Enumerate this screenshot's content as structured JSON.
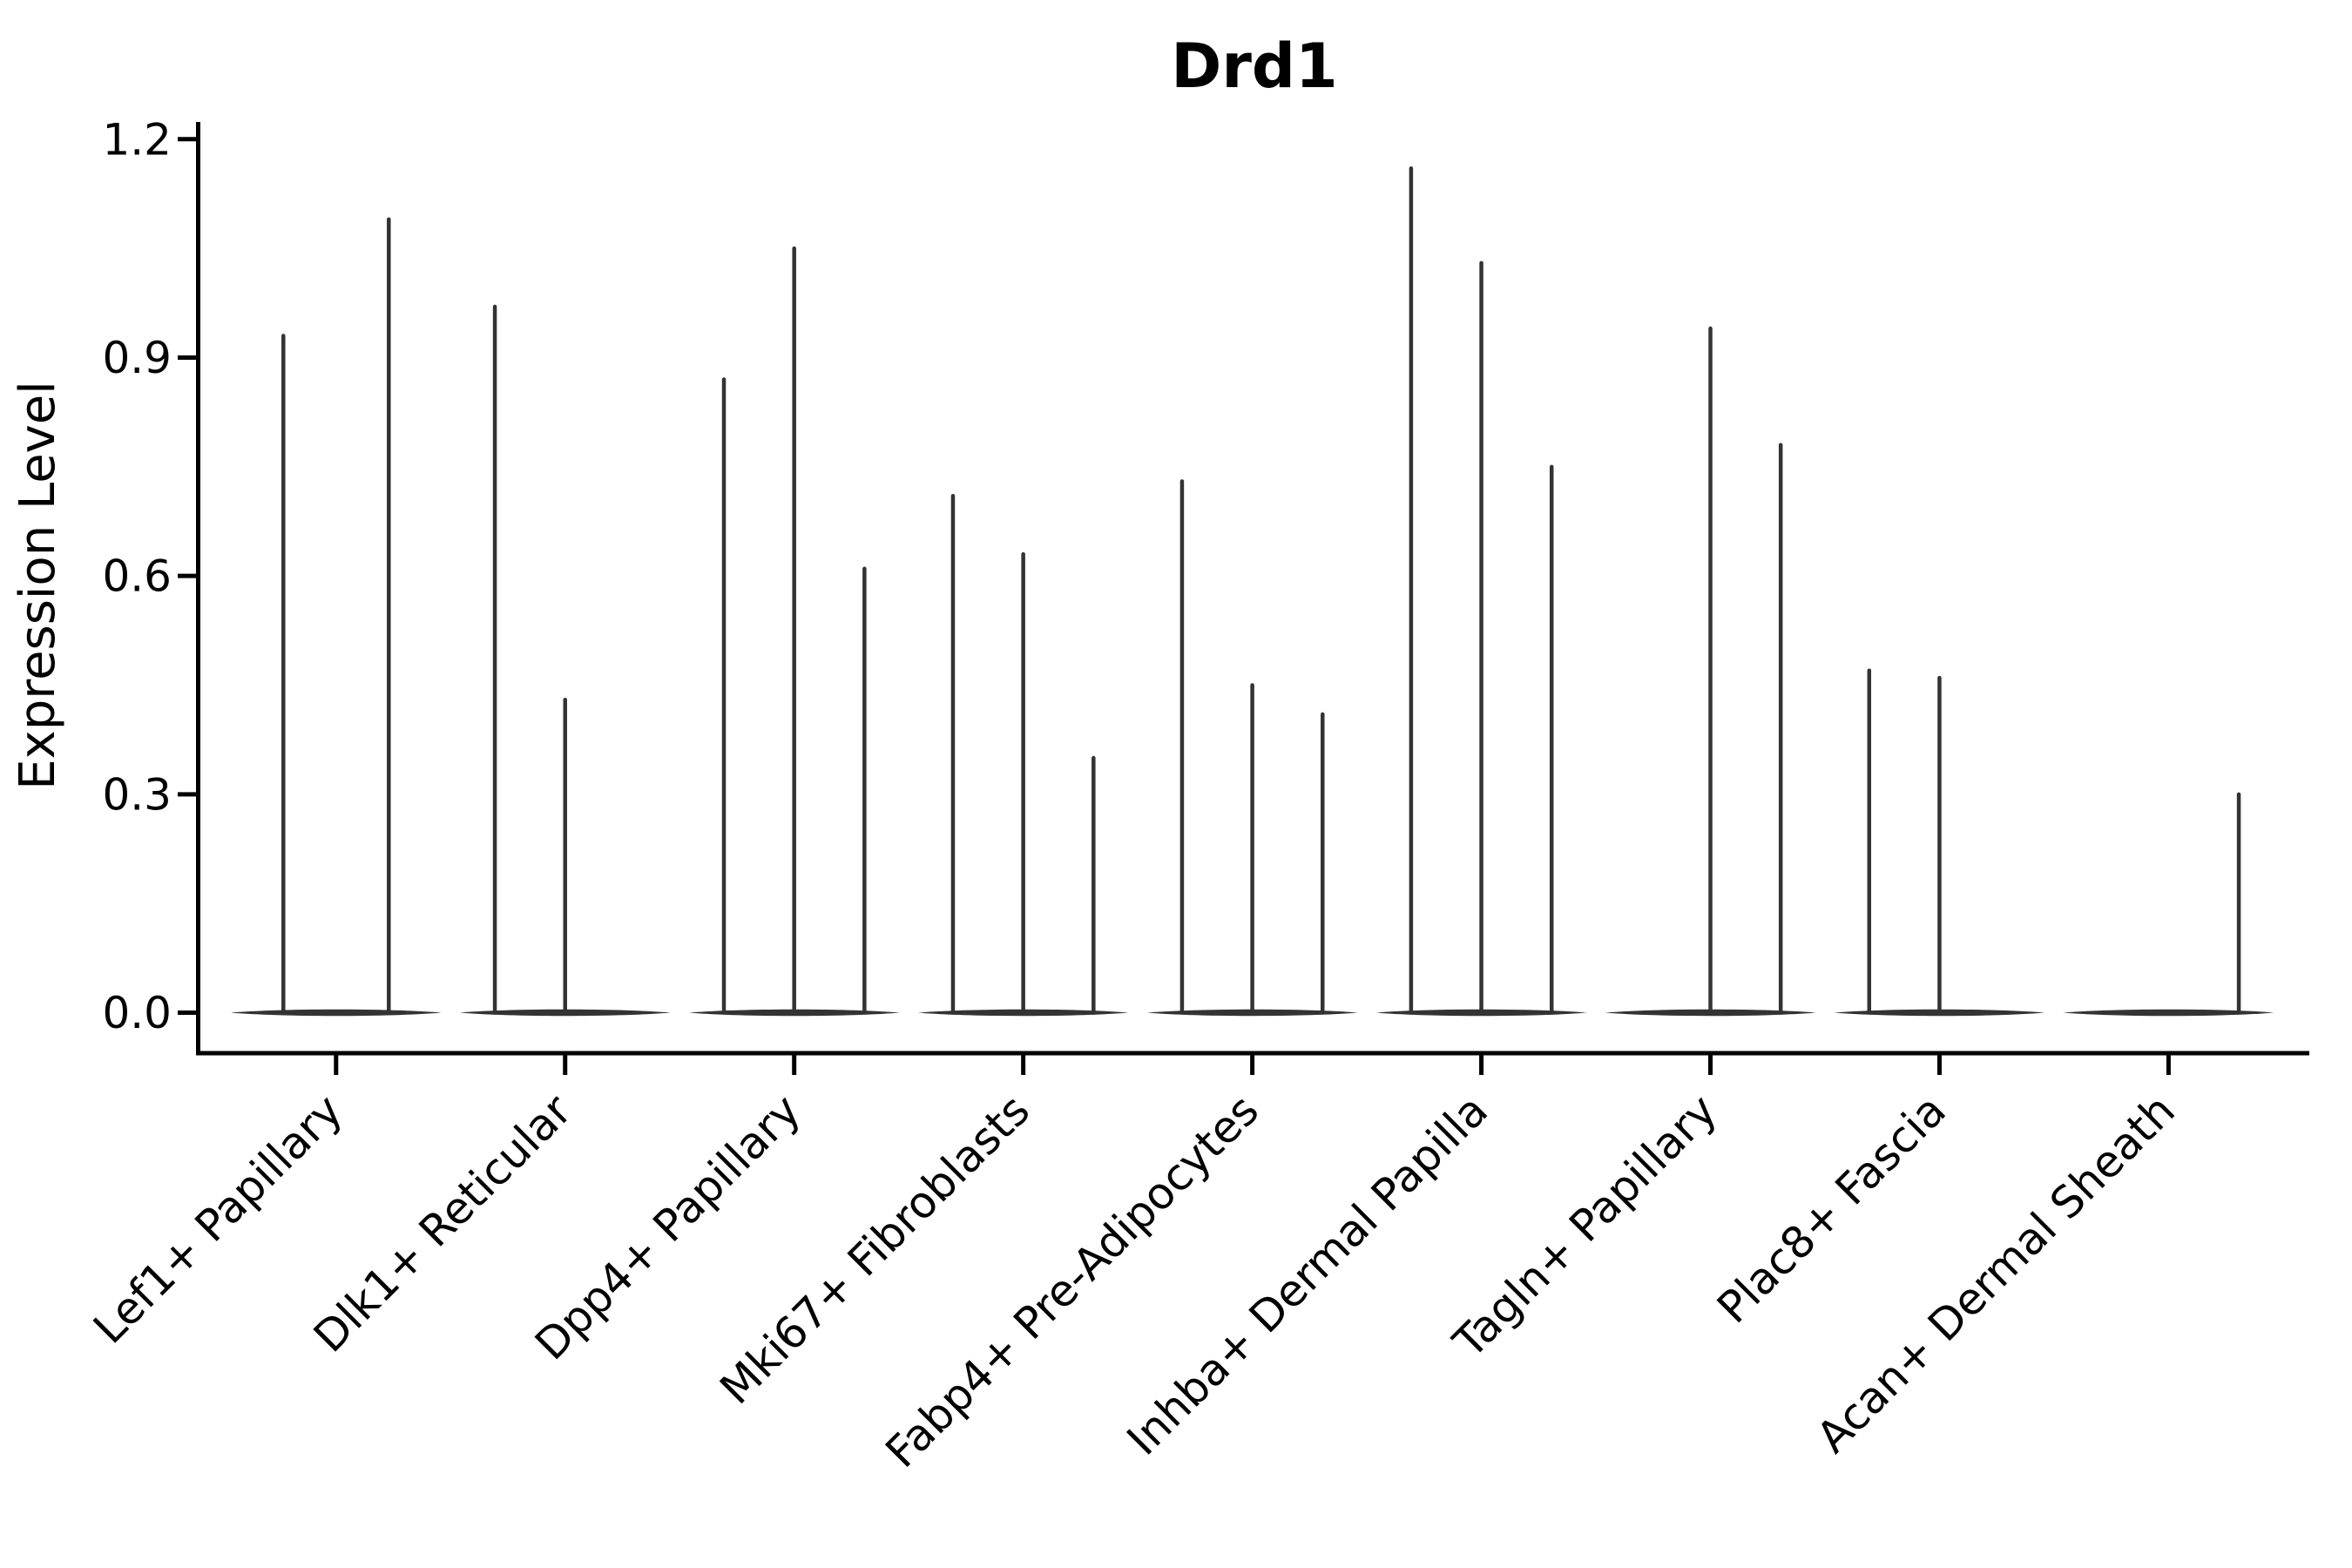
{
  "title": "Drd1",
  "axis_color": "#000000",
  "violin_color": "#333333",
  "background_color": "#ffffff",
  "chart_data": {
    "type": "violin",
    "title": "Drd1",
    "xlabel": "",
    "ylabel": "Expression Level",
    "ylim": [
      0,
      1.26
    ],
    "yticks": [
      0.0,
      0.3,
      0.6,
      0.9,
      1.2
    ],
    "ytick_labels": [
      "0.0",
      "0.3",
      "0.6",
      "0.9",
      "1.2"
    ],
    "grid": false,
    "legend_position": "none",
    "x_tick_rotation_deg": 45,
    "description": "Violin plot of Drd1 expression; each category shows 2-3 very thin violins with a flat base at 0 and narrow spikes reaching the listed maximum expression values (0 = no spike, flat violin only).",
    "categories": [
      "Lef1+ Papillary",
      "Dlk1+ Reticular",
      "Dpp4+ Papillary",
      "Mki67+ Fibroblasts",
      "Fabp4+ Pre-Adipocytes",
      "Inhba+ Dermal Papilla",
      "Tagln+ Papillary",
      "Plac8+ Fascia",
      "Acan+ Dermal Sheath"
    ],
    "violins": [
      {
        "category": "Lef1+ Papillary",
        "max_values": [
          0.93,
          1.09
        ]
      },
      {
        "category": "Dlk1+ Reticular",
        "max_values": [
          0.97,
          0.43,
          0
        ]
      },
      {
        "category": "Dpp4+ Papillary",
        "max_values": [
          0.87,
          1.05,
          0.61
        ]
      },
      {
        "category": "Mki67+ Fibroblasts",
        "max_values": [
          0.71,
          0.63,
          0.35
        ]
      },
      {
        "category": "Fabp4+ Pre-Adipocytes",
        "max_values": [
          0.73,
          0.45,
          0.41
        ]
      },
      {
        "category": "Inhba+ Dermal Papilla",
        "max_values": [
          1.16,
          1.03,
          0.75
        ]
      },
      {
        "category": "Tagln+ Papillary",
        "max_values": [
          0,
          0.94,
          0.78
        ]
      },
      {
        "category": "Plac8+ Fascia",
        "max_values": [
          0.47,
          0.46,
          0
        ]
      },
      {
        "category": "Acan+ Dermal Sheath",
        "max_values": [
          0,
          0,
          0.3
        ]
      }
    ]
  }
}
